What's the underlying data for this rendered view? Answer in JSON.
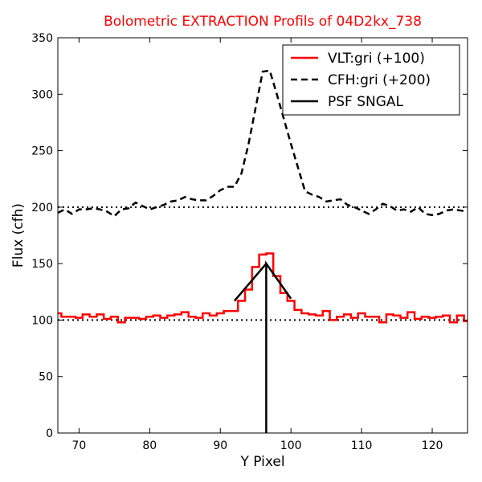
{
  "chart_data": {
    "type": "line",
    "title": "Bolometric EXTRACTION Profils of 04D2kx_738",
    "xlabel": "Y Pixel",
    "ylabel": "Flux (cfh)",
    "xlim": [
      67,
      125
    ],
    "ylim": [
      0,
      350
    ],
    "xticks": [
      70,
      80,
      90,
      100,
      110,
      120
    ],
    "yticks": [
      0,
      50,
      100,
      150,
      200,
      250,
      300,
      350
    ],
    "xtick_labels": [
      "70",
      "80",
      "90",
      "100",
      "110",
      "120"
    ],
    "ytick_labels": [
      "0",
      "50",
      "100",
      "150",
      "200",
      "250",
      "300",
      "350"
    ],
    "grid": false,
    "legend_position": "top-right",
    "reference_lines": [
      {
        "y": 100,
        "style": "dotted",
        "color": "#000000"
      },
      {
        "y": 200,
        "style": "dotted",
        "color": "#000000"
      }
    ],
    "series": [
      {
        "name": "VLT:gri (+100)",
        "color": "#ff0000",
        "style": "steps",
        "x": [
          67,
          68,
          69,
          70,
          71,
          72,
          73,
          74,
          75,
          76,
          77,
          78,
          79,
          80,
          81,
          82,
          83,
          84,
          85,
          86,
          87,
          88,
          89,
          90,
          91,
          92,
          93,
          94,
          95,
          96,
          97,
          98,
          99,
          100,
          101,
          102,
          103,
          104,
          105,
          106,
          107,
          108,
          109,
          110,
          111,
          112,
          113,
          114,
          115,
          116,
          117,
          118,
          119,
          120,
          121,
          122,
          123,
          124,
          125
        ],
        "y": [
          106,
          103,
          103,
          102,
          105,
          103,
          105,
          101,
          103,
          98,
          102,
          102,
          101,
          103,
          104,
          102,
          104,
          105,
          107,
          103,
          102,
          106,
          104,
          106,
          108,
          108,
          117,
          127,
          147,
          158,
          159,
          139,
          124,
          117,
          109,
          106,
          105,
          104,
          108,
          100,
          103,
          105,
          102,
          106,
          103,
          103,
          98,
          105,
          104,
          102,
          107,
          101,
          103,
          102,
          103,
          104,
          98,
          104,
          99
        ]
      },
      {
        "name": "CFH:gri (+200)",
        "color": "#000000",
        "style": "dashed",
        "x": [
          67,
          68,
          69,
          70,
          71,
          72,
          73,
          74,
          75,
          76,
          77,
          78,
          79,
          80,
          81,
          82,
          83,
          84,
          85,
          86,
          87,
          88,
          89,
          90,
          91,
          92,
          93,
          94,
          95,
          96,
          97,
          98,
          99,
          100,
          101,
          102,
          103,
          104,
          105,
          106,
          107,
          108,
          109,
          110,
          111,
          112,
          113,
          114,
          115,
          116,
          117,
          118,
          119,
          120,
          121,
          122,
          123,
          124,
          125
        ],
        "y": [
          195,
          198,
          194,
          198,
          198,
          199,
          198,
          196,
          192,
          198,
          199,
          204,
          201,
          198,
          200,
          202,
          205,
          206,
          209,
          207,
          206,
          206,
          210,
          215,
          218,
          218,
          230,
          256,
          288,
          320,
          321,
          300,
          278,
          256,
          235,
          214,
          211,
          209,
          205,
          206,
          207,
          202,
          200,
          197,
          194,
          198,
          203,
          201,
          197,
          198,
          196,
          200,
          194,
          193,
          194,
          197,
          198,
          197,
          196
        ]
      },
      {
        "name": "PSF SNGAL",
        "color": "#000000",
        "style": "solid",
        "x": [
          92,
          96.5,
          100,
          96.5,
          96.5
        ],
        "y": [
          117,
          150,
          119,
          150,
          0
        ]
      }
    ]
  }
}
